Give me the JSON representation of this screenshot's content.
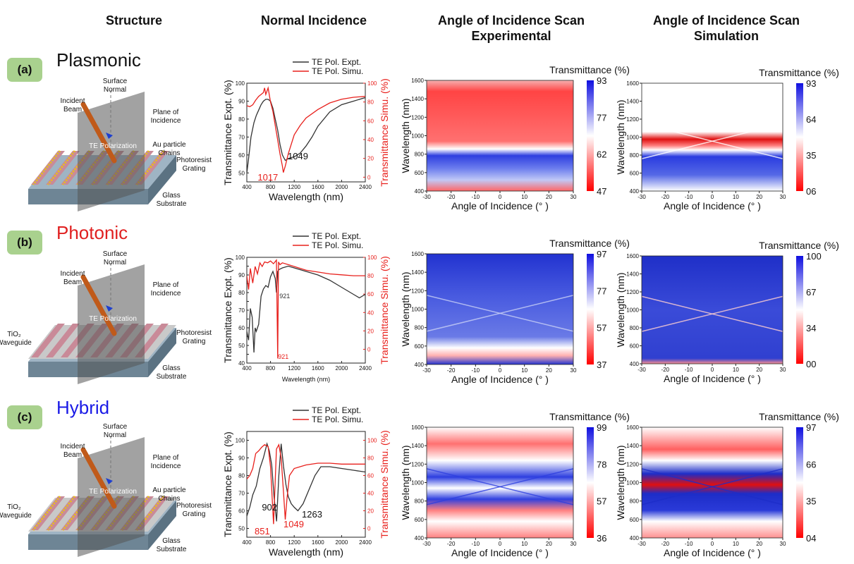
{
  "headers": {
    "structure": "Structure",
    "normal": "Normal Incidence",
    "exp_line1": "Angle of Incidence Scan",
    "exp_line2": "Experimental",
    "sim_line1": "Angle of Incidence Scan",
    "sim_line2": "Simulation"
  },
  "rows": [
    {
      "label": "(a)",
      "name": "Plasmonic",
      "name_color": "#111111",
      "diagram": {
        "surface_normal": "Surface\nNormal",
        "incident_beam": "Incident\nBeam",
        "plane": "Plane of\nIncidence",
        "te": "TE Polarization",
        "au": "Au particle\nChains",
        "grating": "Photoresist\nGrating",
        "glass": "Glass\nSubstrate",
        "waveguide": ""
      }
    },
    {
      "label": "(b)",
      "name": "Photonic",
      "name_color": "#e02020",
      "diagram": {
        "surface_normal": "Surface\nNormal",
        "incident_beam": "Incident\nBeam",
        "plane": "Plane of\nIncidence",
        "te": "TE Polarization",
        "au": "",
        "grating": "Photoresist\nGrating",
        "glass": "Glass\nSubstrate",
        "waveguide": "TiO₂\nWaveguide"
      }
    },
    {
      "label": "(c)",
      "name": "Hybrid",
      "name_color": "#1a1ae6",
      "diagram": {
        "surface_normal": "Surface\nNormal",
        "incident_beam": "Incident\nBeam",
        "plane": "Plane of\nIncidence",
        "te": "TE Polarization",
        "au": "Au particle\nChains",
        "grating": "Photoresist\nGrating",
        "glass": "Glass\nSubstrate",
        "waveguide": "TiO₂\nWaveguide"
      }
    }
  ],
  "chart_data": [
    {
      "type": "line",
      "row": "a",
      "xlabel": "Wavelength (nm)",
      "ylabel_left": "Transmittance  Expt. (%)",
      "ylabel_right": "Transmittance  Simu. (%)",
      "xlim": [
        400,
        2400
      ],
      "xticks": [
        400,
        800,
        1200,
        1600,
        2000,
        2400
      ],
      "ylim_left": [
        45,
        100
      ],
      "yticks_left": [
        50,
        60,
        70,
        80,
        90,
        100
      ],
      "ylim_right": [
        -5,
        100
      ],
      "yticks_right": [
        0,
        20,
        40,
        60,
        80,
        100
      ],
      "series": [
        {
          "name": "TE Pol.  Expt.",
          "color": "#333333",
          "axis": "left",
          "x": [
            400,
            430,
            470,
            520,
            560,
            600,
            640,
            680,
            720,
            760,
            800,
            840,
            880,
            920,
            960,
            1000,
            1049,
            1100,
            1200,
            1300,
            1400,
            1500,
            1600,
            1800,
            2000,
            2200,
            2400
          ],
          "y": [
            50,
            58,
            70,
            78,
            82,
            85,
            88,
            90,
            91,
            91,
            90,
            86,
            80,
            74,
            66,
            60,
            57,
            58,
            59,
            61,
            65,
            70,
            76,
            84,
            88,
            90,
            92
          ]
        },
        {
          "name": "TE Pol.  Simu.",
          "color": "#e8201c",
          "axis": "right",
          "x": [
            400,
            450,
            500,
            550,
            600,
            640,
            680,
            700,
            720,
            760,
            800,
            840,
            880,
            920,
            960,
            1000,
            1017,
            1050,
            1100,
            1200,
            1300,
            1400,
            1600,
            1800,
            2000,
            2200,
            2400
          ],
          "y": [
            76,
            75,
            77,
            82,
            86,
            88,
            90,
            95,
            88,
            95,
            80,
            70,
            55,
            40,
            25,
            12,
            5,
            12,
            25,
            45,
            55,
            63,
            72,
            79,
            83,
            85,
            86
          ]
        }
      ],
      "annotations": [
        {
          "text": "1017",
          "x": 1017,
          "color": "#e8201c"
        },
        {
          "text": "1049",
          "x": 1049,
          "color": "#111111"
        }
      ]
    },
    {
      "type": "line",
      "row": "b",
      "xlabel": "Wavelength (nm)",
      "ylabel_left": "Transmittance  Expt. (%)",
      "ylabel_right": "Transmittance  Simu. (%)",
      "xlim": [
        400,
        2400
      ],
      "xticks": [
        400,
        800,
        1200,
        1600,
        2000,
        2400
      ],
      "ylim_left": [
        40,
        100
      ],
      "yticks_left": [
        40,
        45,
        50,
        55,
        60,
        65,
        70,
        75,
        80,
        85,
        90,
        95,
        100
      ],
      "ylim_right": [
        -15,
        100
      ],
      "yticks_right": [
        0,
        20,
        40,
        60,
        80,
        100
      ],
      "series": [
        {
          "name": "TE Pol.  Expt.",
          "color": "#333333",
          "axis": "left",
          "x": [
            400,
            430,
            460,
            490,
            520,
            540,
            560,
            600,
            640,
            680,
            720,
            760,
            800,
            840,
            880,
            900,
            921,
            940,
            1000,
            1100,
            1200,
            1400,
            1600,
            1800,
            2000,
            2200,
            2300,
            2400
          ],
          "y": [
            58,
            53,
            71,
            66,
            46,
            60,
            58,
            62,
            78,
            82,
            84,
            83,
            89,
            92,
            88,
            80,
            92,
            93,
            94,
            95,
            94,
            92,
            90,
            87,
            83,
            79,
            77,
            79
          ]
        },
        {
          "name": "TE Pol.  Simu.",
          "color": "#e8201c",
          "axis": "right",
          "x": [
            400,
            430,
            460,
            500,
            540,
            580,
            620,
            660,
            700,
            750,
            800,
            850,
            900,
            921,
            935,
            960,
            1000,
            1100,
            1200,
            1400,
            1600,
            1800,
            2000,
            2200,
            2400
          ],
          "y": [
            80,
            65,
            88,
            72,
            90,
            82,
            94,
            90,
            95,
            94,
            96,
            93,
            97,
            -10,
            95,
            92,
            94,
            92,
            90,
            86,
            84,
            82,
            81,
            80,
            80
          ]
        }
      ],
      "annotations": [
        {
          "text": "921",
          "x": 921,
          "color": "#333333"
        },
        {
          "text": "921",
          "x": 921,
          "color": "#e8201c"
        }
      ]
    },
    {
      "type": "line",
      "row": "c",
      "xlabel": "Wavelength (nm)",
      "ylabel_left": "Transmittance  Expt. (%)",
      "ylabel_right": "Transmittance  Simu. (%)",
      "xlim": [
        400,
        2400
      ],
      "xticks": [
        400,
        800,
        1200,
        1600,
        2000,
        2400
      ],
      "ylim_left": [
        45,
        105
      ],
      "yticks_left": [
        50,
        60,
        70,
        80,
        90,
        100
      ],
      "ylim_right": [
        -10,
        110
      ],
      "yticks_right": [
        0,
        20,
        40,
        60,
        80,
        100
      ],
      "series": [
        {
          "name": "TE Pol.  Expt.",
          "color": "#333333",
          "axis": "left",
          "x": [
            400,
            450,
            500,
            560,
            620,
            680,
            740,
            780,
            820,
            860,
            902,
            940,
            980,
            1020,
            1060,
            1100,
            1150,
            1200,
            1263,
            1350,
            1450,
            1550,
            1650,
            1800,
            2000,
            2200,
            2400
          ],
          "y": [
            57,
            62,
            69,
            74,
            84,
            90,
            98,
            94,
            86,
            68,
            54,
            80,
            98,
            85,
            75,
            68,
            64,
            62,
            60,
            64,
            72,
            80,
            85,
            85,
            84,
            83,
            82
          ]
        },
        {
          "name": "TE Pol.  Simu.",
          "color": "#e8201c",
          "axis": "right",
          "x": [
            400,
            450,
            500,
            550,
            600,
            650,
            700,
            760,
            800,
            851,
            900,
            940,
            980,
            1020,
            1049,
            1080,
            1120,
            1200,
            1300,
            1400,
            1600,
            1800,
            2000,
            2200,
            2400
          ],
          "y": [
            56,
            60,
            68,
            85,
            88,
            92,
            95,
            93,
            70,
            5,
            90,
            95,
            80,
            40,
            10,
            35,
            60,
            68,
            70,
            72,
            74,
            74,
            73,
            73,
            73
          ]
        }
      ],
      "annotations": [
        {
          "text": "902",
          "x": 902,
          "color": "#111111"
        },
        {
          "text": "1263",
          "x": 1263,
          "color": "#111111"
        },
        {
          "text": "851",
          "x": 851,
          "color": "#e8201c"
        },
        {
          "text": "1049",
          "x": 1049,
          "color": "#e8201c"
        }
      ]
    },
    {
      "type": "heatmap",
      "row": "a",
      "panel": "Experimental",
      "xlabel": "Angle of Incidence (° )",
      "ylabel": "Wavelength (nm)",
      "xlim": [
        -30,
        30
      ],
      "ylim": [
        400,
        1600
      ],
      "xticks": [
        -30,
        -20,
        -10,
        0,
        10,
        20,
        30
      ],
      "yticks": [
        400,
        600,
        800,
        1000,
        1200,
        1400,
        1600
      ],
      "colorbar_label": "Transmittance (%)",
      "colorbar_ticks": [
        93,
        77,
        62,
        47
      ]
    },
    {
      "type": "heatmap",
      "row": "a",
      "panel": "Simulation",
      "xlabel": "Angle of Incidence (° )",
      "ylabel": "Wavelength (nm)",
      "xlim": [
        -30,
        30
      ],
      "ylim": [
        400,
        1600
      ],
      "xticks": [
        -30,
        -20,
        -10,
        0,
        10,
        20,
        30
      ],
      "yticks": [
        400,
        600,
        800,
        1000,
        1200,
        1400,
        1600
      ],
      "colorbar_label": "Transmittance (%)",
      "colorbar_ticks": [
        "93",
        "64",
        "35",
        "06"
      ]
    },
    {
      "type": "heatmap",
      "row": "b",
      "panel": "Experimental",
      "xlabel": "Angle of Incidence (° )",
      "ylabel": "Wavelength (nm)",
      "xlim": [
        -30,
        30
      ],
      "ylim": [
        400,
        1600
      ],
      "xticks": [
        -30,
        -20,
        -10,
        0,
        10,
        20,
        30
      ],
      "yticks": [
        400,
        600,
        800,
        1000,
        1200,
        1400,
        1600
      ],
      "colorbar_label": "Transmittance (%)",
      "colorbar_ticks": [
        97,
        77,
        57,
        37
      ]
    },
    {
      "type": "heatmap",
      "row": "b",
      "panel": "Simulation",
      "xlabel": "Angle of Incidence (° )",
      "ylabel": "Wavelength (nm)",
      "xlim": [
        -30,
        30
      ],
      "ylim": [
        400,
        1600
      ],
      "xticks": [
        -30,
        -20,
        -10,
        0,
        10,
        20,
        30
      ],
      "yticks": [
        400,
        600,
        800,
        1000,
        1200,
        1400,
        1600
      ],
      "colorbar_label": "Transmittance (%)",
      "colorbar_ticks": [
        "100",
        "67",
        "34",
        "00"
      ]
    },
    {
      "type": "heatmap",
      "row": "c",
      "panel": "Experimental",
      "xlabel": "Angle of Incidence (° )",
      "ylabel": "Wavelength (nm)",
      "xlim": [
        -30,
        30
      ],
      "ylim": [
        400,
        1600
      ],
      "xticks": [
        -30,
        -20,
        -10,
        0,
        10,
        20,
        30
      ],
      "yticks": [
        400,
        600,
        800,
        1000,
        1200,
        1400,
        1600
      ],
      "colorbar_label": "Transmittance (%)",
      "colorbar_ticks": [
        99,
        78,
        57,
        36
      ]
    },
    {
      "type": "heatmap",
      "row": "c",
      "panel": "Simulation",
      "xlabel": "Angle of Incidence (° )",
      "ylabel": "Wavelength (nm)",
      "xlim": [
        -30,
        30
      ],
      "ylim": [
        400,
        1600
      ],
      "xticks": [
        -30,
        -20,
        -10,
        0,
        10,
        20,
        30
      ],
      "yticks": [
        400,
        600,
        800,
        1000,
        1200,
        1400,
        1600
      ],
      "colorbar_label": "Transmittance (%)",
      "colorbar_ticks": [
        "97",
        "66",
        "35",
        "04"
      ]
    }
  ]
}
